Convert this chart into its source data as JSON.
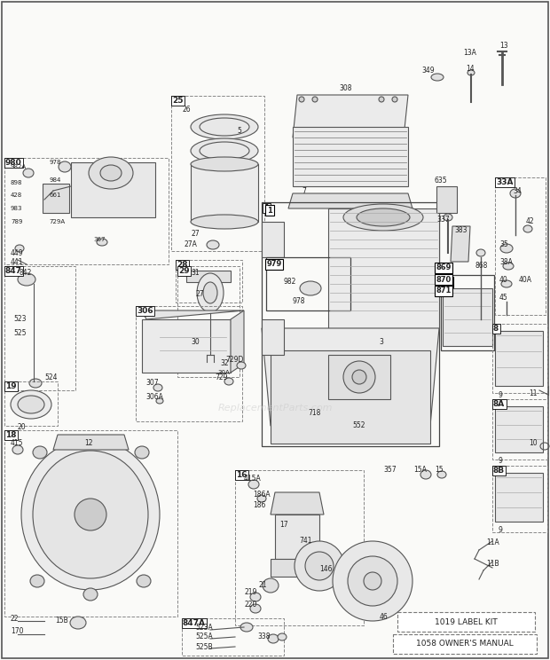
{
  "bg_color": "#fafaf8",
  "label_color": "#222222",
  "dashed_color": "#888888",
  "solid_color": "#444444",
  "line_color": "#555555",
  "fig_w": 6.2,
  "fig_h": 7.44,
  "dpi": 100,
  "watermark": "ReplacementParts.com",
  "bottom_labels": [
    "1019 LABEL KIT",
    "1058 OWNER'S MANUAL"
  ]
}
